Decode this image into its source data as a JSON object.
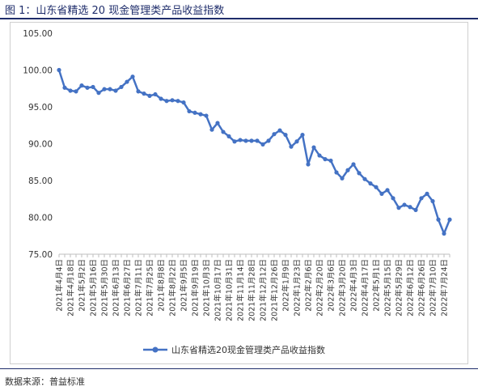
{
  "figure": {
    "title": "图 1：山东省精选 20 现金管理类产品收益指数",
    "source": "数据来源：普益标准",
    "line_color": "#4472c4"
  },
  "chart_data": {
    "type": "line",
    "title": "",
    "xlabel": "",
    "ylabel": "",
    "ylim": [
      75,
      105
    ],
    "yticks": [
      "105.00",
      "100.00",
      "95.00",
      "90.00",
      "85.00",
      "80.00",
      "75.00"
    ],
    "grid": false,
    "legend_position": "bottom",
    "categories": [
      "2021年4月4日",
      "2021年4月11日",
      "2021年4月18日",
      "2021年4月25日",
      "2021年5月2日",
      "2021年5月9日",
      "2021年5月16日",
      "2021年5月23日",
      "2021年5月30日",
      "2021年6月6日",
      "2021年6月13日",
      "2021年6月20日",
      "2021年6月27日",
      "2021年7月4日",
      "2021年7月11日",
      "2021年7月18日",
      "2021年7月25日",
      "2021年8月1日",
      "2021年8月8日",
      "2021年8月15日",
      "2021年8月22日",
      "2021年8月29日",
      "2021年9月5日",
      "2021年9月12日",
      "2021年9月19日",
      "2021年9月26日",
      "2021年10月3日",
      "2021年10月10日",
      "2021年10月17日",
      "2021年10月24日",
      "2021年10月31日",
      "2021年11月7日",
      "2021年11月14日",
      "2021年11月21日",
      "2021年11月28日",
      "2021年12月5日",
      "2021年12月12日",
      "2021年12月19日",
      "2021年12月26日",
      "2022年1月2日",
      "2022年1月9日",
      "2022年1月16日",
      "2022年1月23日",
      "2022年1月30日",
      "2022年2月6日",
      "2022年2月13日",
      "2022年2月20日",
      "2022年2月27日",
      "2022年3月6日",
      "2022年3月13日",
      "2022年3月20日",
      "2022年3月27日",
      "2022年4月3日",
      "2022年4月10日",
      "2022年4月17日",
      "2022年4月24日",
      "2022年5月1日",
      "2022年5月8日",
      "2022年5月15日",
      "2022年5月22日",
      "2022年5月29日",
      "2022年6月5日",
      "2022年6月12日",
      "2022年6月19日",
      "2022年6月26日",
      "2022年7月3日",
      "2022年7月10日",
      "2022年7月17日",
      "2022年7月24日",
      "2022年7月31日"
    ],
    "tick_labels": [
      "2021年4月4日",
      "2021年4月18日",
      "2021年5月2日",
      "2021年5月16日",
      "2021年5月30日",
      "2021年6月13日",
      "2021年6月27日",
      "2021年7月11日",
      "2021年7月25日",
      "2021年8月8日",
      "2021年8月22日",
      "2021年9月5日",
      "2021年9月19日",
      "2021年10月3日",
      "2021年10月17日",
      "2021年10月31日",
      "2021年11月14日",
      "2021年11月28日",
      "2021年12月12日",
      "2021年12月26日",
      "2022年1月9日",
      "2022年1月23日",
      "2022年2月6日",
      "2022年2月20日",
      "2022年3月6日",
      "2022年3月20日",
      "2022年4月3日",
      "2022年4月17日",
      "2022年5月1日",
      "2022年5月15日",
      "2022年5月29日",
      "2022年6月12日",
      "2022年6月26日",
      "2022年7月10日",
      "2022年7月24日"
    ],
    "series": [
      {
        "name": "山东省精选20现金管理类产品收益指数",
        "values": [
          100.0,
          97.6,
          97.2,
          97.1,
          97.9,
          97.6,
          97.7,
          96.9,
          97.4,
          97.4,
          97.2,
          97.7,
          98.4,
          99.1,
          97.1,
          96.8,
          96.5,
          96.7,
          96.1,
          95.8,
          95.9,
          95.8,
          95.6,
          94.4,
          94.2,
          94.0,
          93.8,
          91.9,
          92.8,
          91.6,
          91.0,
          90.3,
          90.5,
          90.4,
          90.4,
          90.4,
          89.9,
          90.4,
          91.3,
          91.8,
          91.2,
          89.6,
          90.3,
          91.2,
          87.2,
          89.5,
          88.4,
          87.9,
          87.7,
          86.1,
          85.3,
          86.4,
          87.2,
          86.0,
          85.2,
          84.6,
          84.1,
          83.2,
          83.7,
          82.6,
          81.3,
          81.7,
          81.4,
          81.0,
          82.6,
          83.2,
          82.2,
          79.7,
          77.8,
          79.7
        ]
      }
    ]
  }
}
